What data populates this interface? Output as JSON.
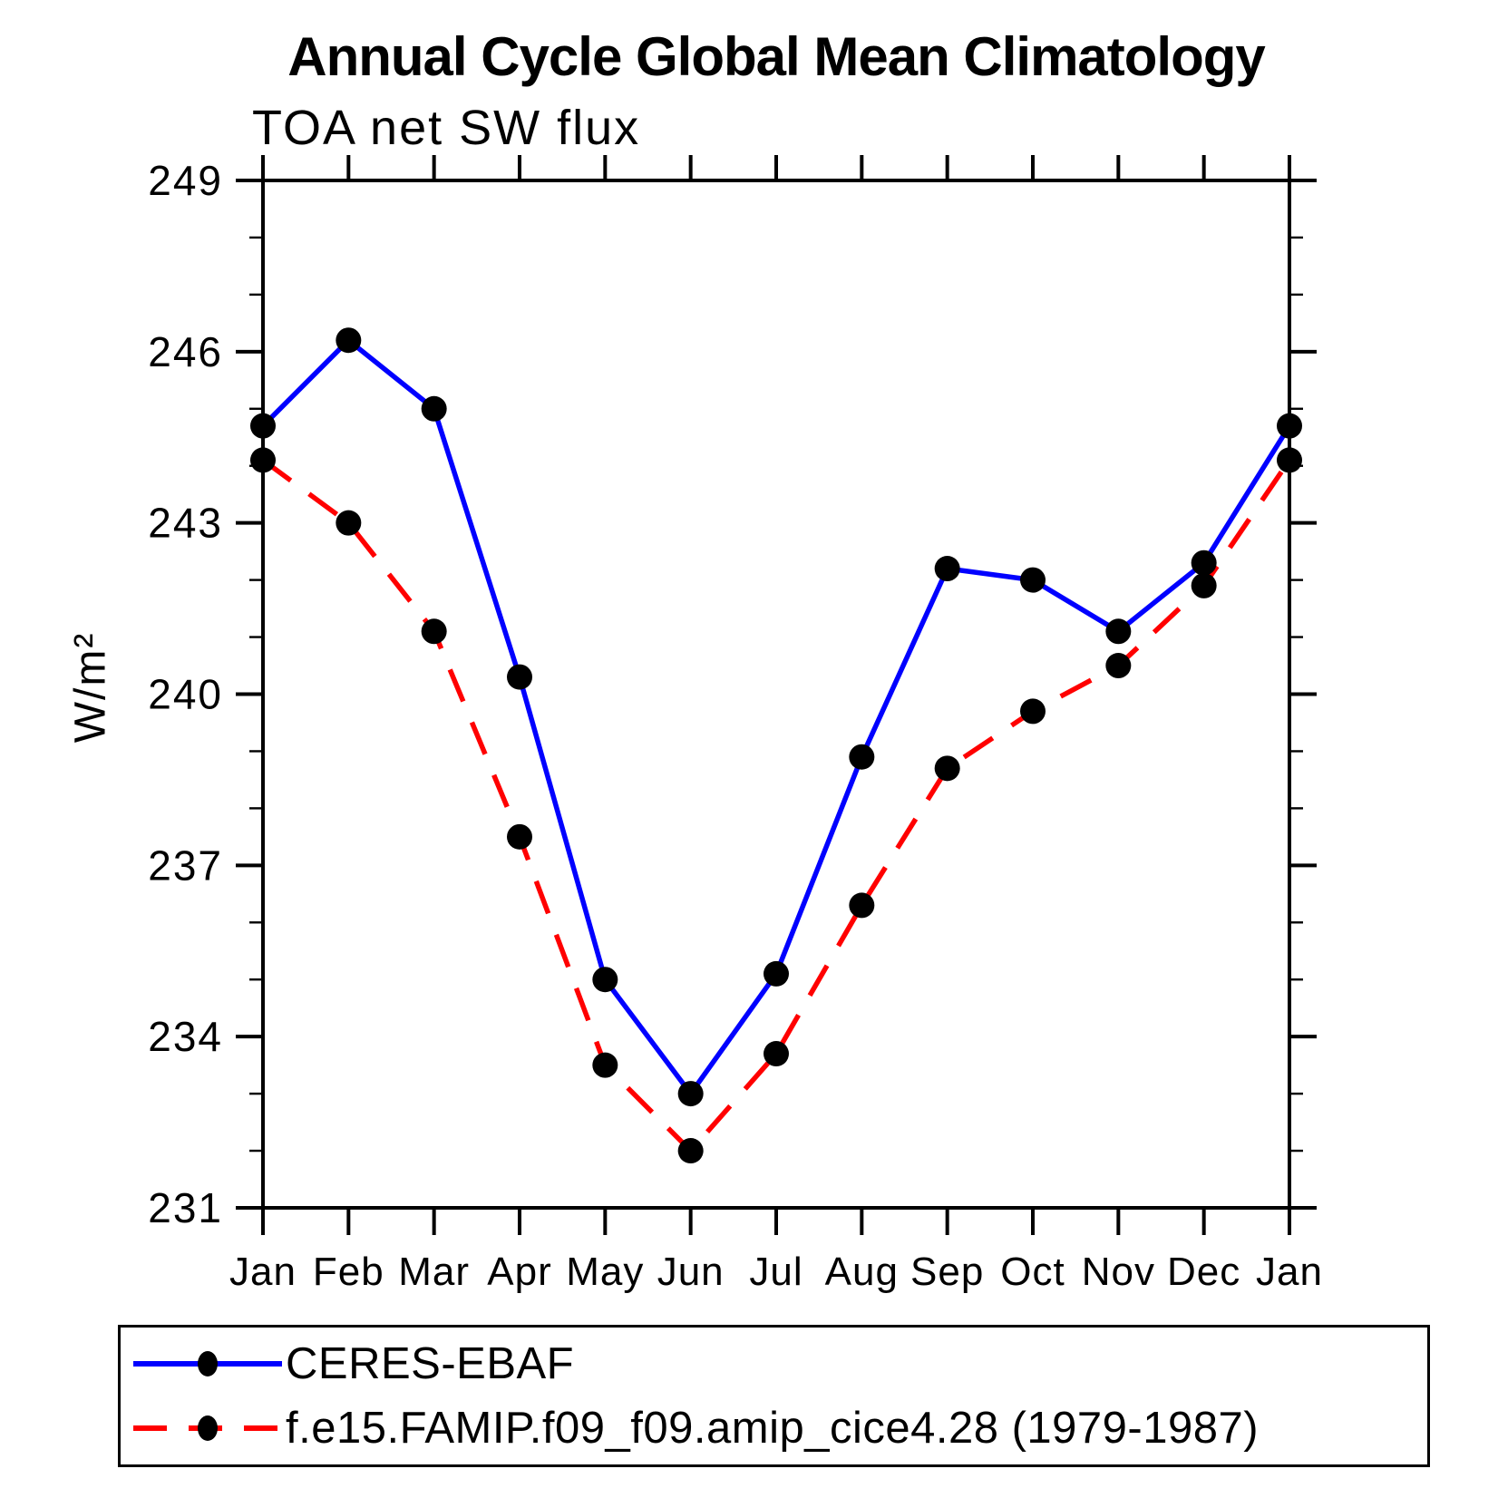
{
  "chart_data": {
    "type": "line",
    "title": "Annual Cycle Global Mean Climatology",
    "subtitle": "TOA net SW flux",
    "ylabel": "W/m²",
    "x_categories": [
      "Jan",
      "Feb",
      "Mar",
      "Apr",
      "May",
      "Jun",
      "Jul",
      "Aug",
      "Sep",
      "Oct",
      "Nov",
      "Dec",
      "Jan"
    ],
    "ylim": [
      231,
      249
    ],
    "yticks": [
      231,
      234,
      237,
      240,
      243,
      246,
      249
    ],
    "minor_tick_step": 1,
    "grid": false,
    "legend_position": "bottom-left-box",
    "marker": "filled-circle",
    "marker_color": "#000000",
    "axis_color": "#000000",
    "series": [
      {
        "name": "CERES-EBAF",
        "color": "#0000ff",
        "line_style": "solid",
        "values": [
          244.7,
          246.2,
          245.0,
          240.3,
          235.0,
          233.0,
          235.1,
          238.9,
          242.2,
          242.0,
          241.1,
          242.3,
          244.7
        ]
      },
      {
        "name": "f.e15.FAMIP.f09_f09.amip_cice4.28 (1979-1987)",
        "color": "#ff0000",
        "line_style": "dashed",
        "values": [
          244.1,
          243.0,
          241.1,
          237.5,
          233.5,
          232.0,
          233.7,
          236.3,
          238.7,
          239.7,
          240.5,
          241.9,
          244.1
        ]
      }
    ]
  }
}
